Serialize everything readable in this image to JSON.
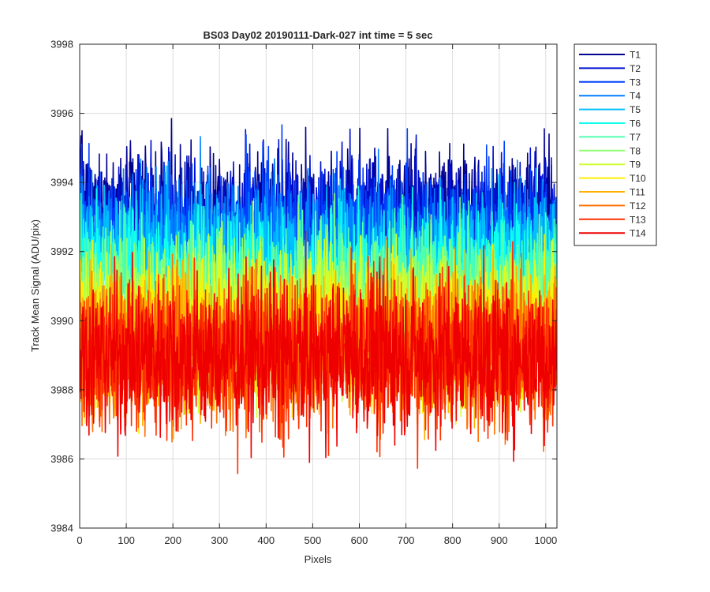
{
  "chart_data": {
    "type": "line",
    "title": "BS03 Day02 20190111-Dark-027 int time = 5 sec",
    "xlabel": "Pixels",
    "ylabel": "Track Mean Signal (ADU/pix)",
    "xlim": [
      0,
      1024
    ],
    "ylim": [
      3984,
      3998
    ],
    "xticks": [
      0,
      100,
      200,
      300,
      400,
      500,
      600,
      700,
      800,
      900,
      1000
    ],
    "yticks": [
      3984,
      3986,
      3988,
      3990,
      3992,
      3994,
      3996,
      3998
    ],
    "grid": true,
    "legend_position": "outside-top-right",
    "n_points_per_series": 1024,
    "series": [
      {
        "name": "T1",
        "color": "#00008f",
        "mean": 3993.1,
        "noise": 1.35
      },
      {
        "name": "T2",
        "color": "#0010d0",
        "mean": 3992.9,
        "noise": 1.35
      },
      {
        "name": "T3",
        "color": "#0040ff",
        "mean": 3992.6,
        "noise": 1.35
      },
      {
        "name": "T4",
        "color": "#0080ff",
        "mean": 3992.2,
        "noise": 1.35
      },
      {
        "name": "T5",
        "color": "#00bfff",
        "mean": 3991.8,
        "noise": 1.35
      },
      {
        "name": "T6",
        "color": "#10ffef",
        "mean": 3991.3,
        "noise": 1.4
      },
      {
        "name": "T7",
        "color": "#50ffaf",
        "mean": 3990.9,
        "noise": 1.4
      },
      {
        "name": "T8",
        "color": "#8fff70",
        "mean": 3990.5,
        "noise": 1.4
      },
      {
        "name": "T9",
        "color": "#cfff30",
        "mean": 3990.1,
        "noise": 1.45
      },
      {
        "name": "T10",
        "color": "#ffef00",
        "mean": 3989.7,
        "noise": 1.45
      },
      {
        "name": "T11",
        "color": "#ffb000",
        "mean": 3989.4,
        "noise": 1.45
      },
      {
        "name": "T12",
        "color": "#ff7000",
        "mean": 3989.2,
        "noise": 1.5
      },
      {
        "name": "T13",
        "color": "#ff3000",
        "mean": 3989.0,
        "noise": 1.5
      },
      {
        "name": "T14",
        "color": "#ef0000",
        "mean": 3989.0,
        "noise": 1.55
      }
    ]
  }
}
